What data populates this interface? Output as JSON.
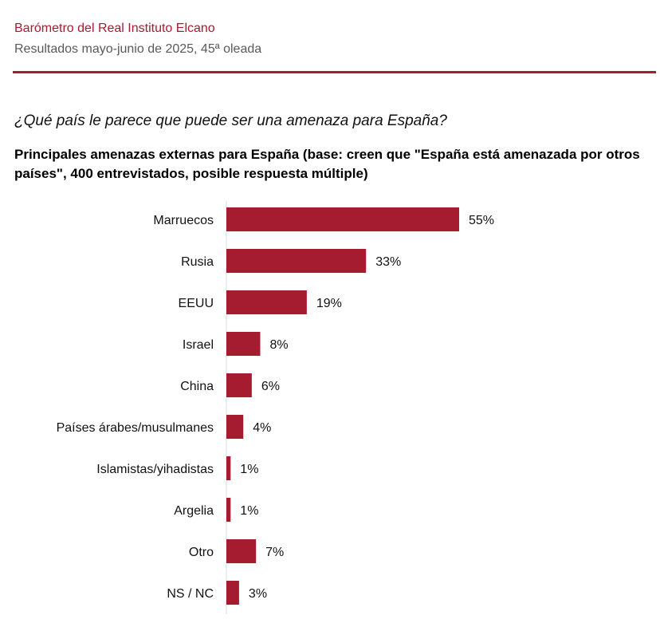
{
  "header": {
    "title": "Barómetro del Real Instituto Elcano",
    "subtitle": "Resultados mayo-junio de 2025, 45ª oleada"
  },
  "question": "¿Qué país le parece que puede ser una amenaza para España?",
  "chart_title": "Principales amenazas externas para España (base: creen que \"España está amenazada por otros países\", 400 entrevistados, posible respuesta múltiple)",
  "colors": {
    "bar": "#a51c30",
    "accent": "#a51c30"
  },
  "chart_data": {
    "type": "bar",
    "orientation": "horizontal",
    "title": "Principales amenazas externas para España (base: creen que \"España está amenazada por otros países\", 400 entrevistados, posible respuesta múltiple)",
    "categories": [
      "Marruecos",
      "Rusia",
      "EEUU",
      "Israel",
      "China",
      "Países árabes/musulmanes",
      "Islamistas/yihadistas",
      "Argelia",
      "Otro",
      "NS / NC"
    ],
    "values": [
      55,
      33,
      19,
      8,
      6,
      4,
      1,
      1,
      7,
      3
    ],
    "value_labels": [
      "55%",
      "33%",
      "19%",
      "8%",
      "6%",
      "4%",
      "1%",
      "1%",
      "7%",
      "3%"
    ],
    "unit": "%",
    "xlim": [
      0,
      100
    ],
    "grid": false,
    "legend": "none"
  }
}
